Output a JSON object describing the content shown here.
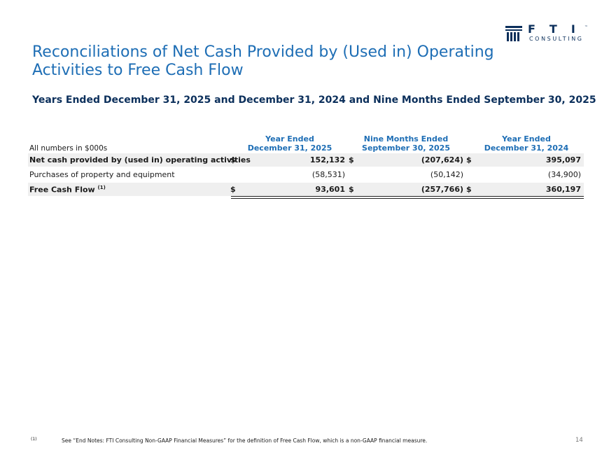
{
  "logo": {
    "letters": "FTI",
    "tm": "™",
    "sub": "CONSULTING"
  },
  "title": "Reconciliations of Net Cash Provided by (Used in) Operating Activities to Free Cash Flow",
  "subtitle": "Years Ended December 31, 2025 and December 31, 2024 and Nine Months Ended September 30, 2025",
  "table": {
    "units_label": "All numbers in $000s",
    "columns": [
      {
        "line1": "Year Ended",
        "line2": "December 31, 2025"
      },
      {
        "line1": "Nine Months Ended",
        "line2": "September 30, 2025"
      },
      {
        "line1": "Year Ended",
        "line2": "December 31, 2024"
      }
    ],
    "currency": "$",
    "rows": [
      {
        "label": "Net cash provided by (used in) operating activities",
        "values": [
          "152,132",
          "(207,624)",
          "395,097"
        ]
      },
      {
        "label": "Purchases of property and equipment",
        "values": [
          "(58,531)",
          "(50,142)",
          "(34,900)"
        ]
      },
      {
        "label": "Free Cash Flow",
        "footnote_ref": "(1)",
        "values": [
          "93,601",
          "(257,766)",
          "360,197"
        ]
      }
    ]
  },
  "footnote": {
    "mark": "(1)",
    "text": "See “End Notes: FTI Consulting Non-GAAP Financial Measures” for the definition of Free Cash Flow, which is a non-GAAP financial measure."
  },
  "page_number": "14",
  "colors": {
    "title_blue": "#1e6eb5",
    "navy": "#0b2f5b",
    "row_shade": "#efefef"
  }
}
